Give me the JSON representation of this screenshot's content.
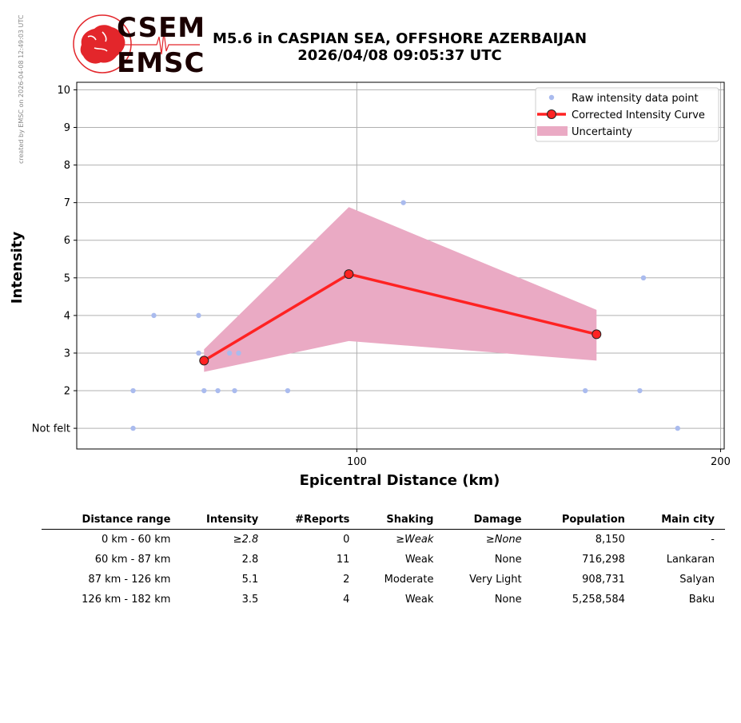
{
  "credit": "created by EMSC on 2026-04-08 12:49:03 UTC",
  "logo": {
    "top_text": "CSEM",
    "bottom_text": "EMSC",
    "accent": "#e3262b"
  },
  "title_line1": "M5.6 in CASPIAN SEA, OFFSHORE AZERBAIJAN",
  "title_line2": "2026/04/08 09:05:37 UTC",
  "chart_data": {
    "type": "line",
    "xlabel": "Epicentral Distance (km)",
    "ylabel": "Intensity",
    "xlim": [
      23,
      201
    ],
    "ylim": [
      0.45,
      10.2
    ],
    "x_ticks": [
      100,
      200
    ],
    "y_ticks": [
      {
        "value": 1,
        "label": "Not felt"
      },
      {
        "value": 2,
        "label": "2"
      },
      {
        "value": 3,
        "label": "3"
      },
      {
        "value": 4,
        "label": "4"
      },
      {
        "value": 5,
        "label": "5"
      },
      {
        "value": 6,
        "label": "6"
      },
      {
        "value": 7,
        "label": "7"
      },
      {
        "value": 8,
        "label": "8"
      },
      {
        "value": 9,
        "label": "9"
      },
      {
        "value": 10,
        "label": "10"
      }
    ],
    "grid": true,
    "legend_position": "top-right",
    "raw_points": {
      "name": "Raw intensity data point",
      "color": "#aabbee",
      "points": [
        [
          38.5,
          1
        ],
        [
          38.5,
          2
        ],
        [
          44.2,
          4
        ],
        [
          56.5,
          4
        ],
        [
          56.5,
          3
        ],
        [
          58.0,
          2
        ],
        [
          61.8,
          2
        ],
        [
          66.4,
          2
        ],
        [
          81.0,
          2
        ],
        [
          65.0,
          3
        ],
        [
          67.5,
          3
        ],
        [
          112.8,
          7
        ],
        [
          162.8,
          2
        ],
        [
          177.8,
          2
        ],
        [
          178.8,
          5
        ],
        [
          188.2,
          1
        ]
      ]
    },
    "corrected_curve": {
      "name": "Corrected Intensity Curve",
      "color": "#ff2222",
      "x": [
        58.0,
        97.8,
        165.9
      ],
      "y": [
        2.8,
        5.1,
        3.5
      ]
    },
    "uncertainty": {
      "name": "Uncertainty",
      "color": "#eaaac4",
      "x": [
        58.0,
        97.8,
        165.9
      ],
      "lower": [
        2.5,
        3.32,
        2.8
      ],
      "upper": [
        3.1,
        6.88,
        4.15
      ]
    }
  },
  "table": {
    "headers": [
      "Distance range",
      "Intensity",
      "#Reports",
      "Shaking",
      "Damage",
      "Population",
      "Main city"
    ],
    "rows": [
      [
        "0 km -   60 km",
        "≥2.8",
        "0",
        "≥Weak",
        "≥None",
        "8,150",
        "-"
      ],
      [
        "60 km -   87 km",
        "2.8",
        "11",
        "Weak",
        "None",
        "716,298",
        "Lankaran"
      ],
      [
        "87 km -  126 km",
        "5.1",
        "2",
        "Moderate",
        "Very Light",
        "908,731",
        "Salyan"
      ],
      [
        "126 km -  182 km",
        "3.5",
        "4",
        "Weak",
        "None",
        "5,258,584",
        "Baku"
      ]
    ]
  }
}
